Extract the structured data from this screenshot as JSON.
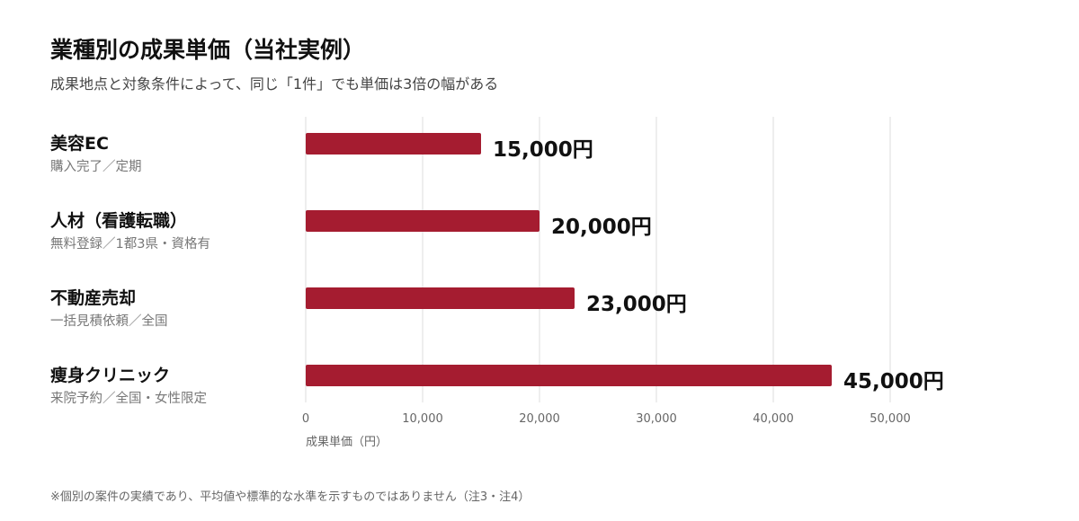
{
  "title": "業種別の成果単価（当社実例）",
  "subtitle": "成果地点と対象条件によって、同じ「1件」でも単価は3倍の幅がある",
  "rows": [
    {
      "name": "美容EC",
      "condition": "購入完了／定期"
    },
    {
      "name": "人材（看護転職）",
      "condition": "無料登録／1都3県・資格有"
    },
    {
      "name": "不動産売却",
      "condition": "一括見積依頼／全国"
    },
    {
      "name": "痩身クリニック",
      "condition": "来院予約／全国・女性限定"
    }
  ],
  "footnote": "※個別の案件の実績であり、平均値や標準的な水準を示すものではありません（注3・注4）",
  "colors": {
    "bar": "#a51c30",
    "grid": "#dddddd",
    "axis_text": "#666666"
  },
  "chart_data": {
    "type": "bar",
    "orientation": "horizontal",
    "categories": [
      "美容EC",
      "人材（看護転職）",
      "不動産売却",
      "痩身クリニック"
    ],
    "values": [
      15000,
      20000,
      23000,
      45000
    ],
    "data_labels": [
      "15,000円",
      "20,000円",
      "23,000円",
      "45,000円"
    ],
    "xlabel": "成果単価（円）",
    "xlim": [
      0,
      50000
    ],
    "xticks": [
      0,
      10000,
      20000,
      30000,
      40000,
      50000
    ],
    "xtick_labels": [
      "0",
      "10,000",
      "20,000",
      "30,000",
      "40,000",
      "50,000"
    ],
    "grid": true,
    "legend": "none"
  }
}
